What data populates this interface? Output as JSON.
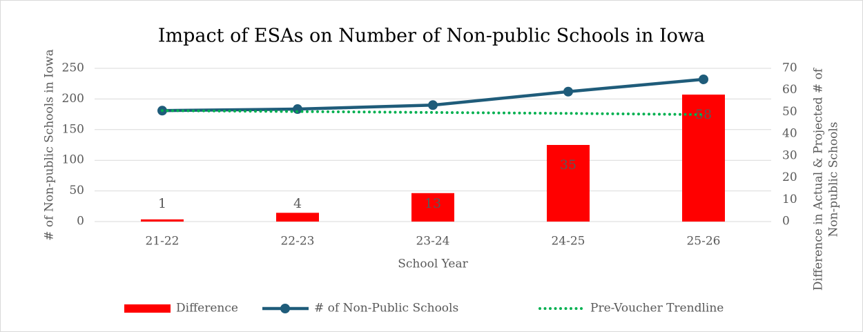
{
  "chart_data": {
    "type": "combo",
    "title": "Impact of ESAs on Number of Non-public Schools in Iowa",
    "x_label": "School Year",
    "y_label": "# of Non-public Schools in Iowa",
    "y2_label": [
      "Difference in Actual & Projected # of",
      "Non-public Schools"
    ],
    "categories": [
      "21-22",
      "22-23",
      "23-24",
      "24-25",
      "25-26"
    ],
    "ylim": [
      0,
      250
    ],
    "yticks": [
      0,
      50,
      100,
      150,
      200,
      250
    ],
    "y2lim": [
      0,
      70
    ],
    "y2ticks": [
      0,
      10,
      20,
      30,
      40,
      50,
      60,
      70
    ],
    "grid": true,
    "legend": "bottom",
    "series": [
      {
        "name": "Difference",
        "type": "bar",
        "axis": "y2",
        "color": "#ff0000",
        "values": [
          1,
          4,
          13,
          35,
          58
        ]
      },
      {
        "name": "# of Non-Public Schools",
        "type": "line",
        "color": "#1f5c7a",
        "values": [
          181,
          183.5,
          190,
          212,
          232
        ]
      },
      {
        "name": "Pre-Voucher Trendline",
        "type": "dotted",
        "color": "#00b050",
        "values": [
          181,
          179.5,
          178,
          176.5,
          174.5
        ]
      }
    ]
  }
}
